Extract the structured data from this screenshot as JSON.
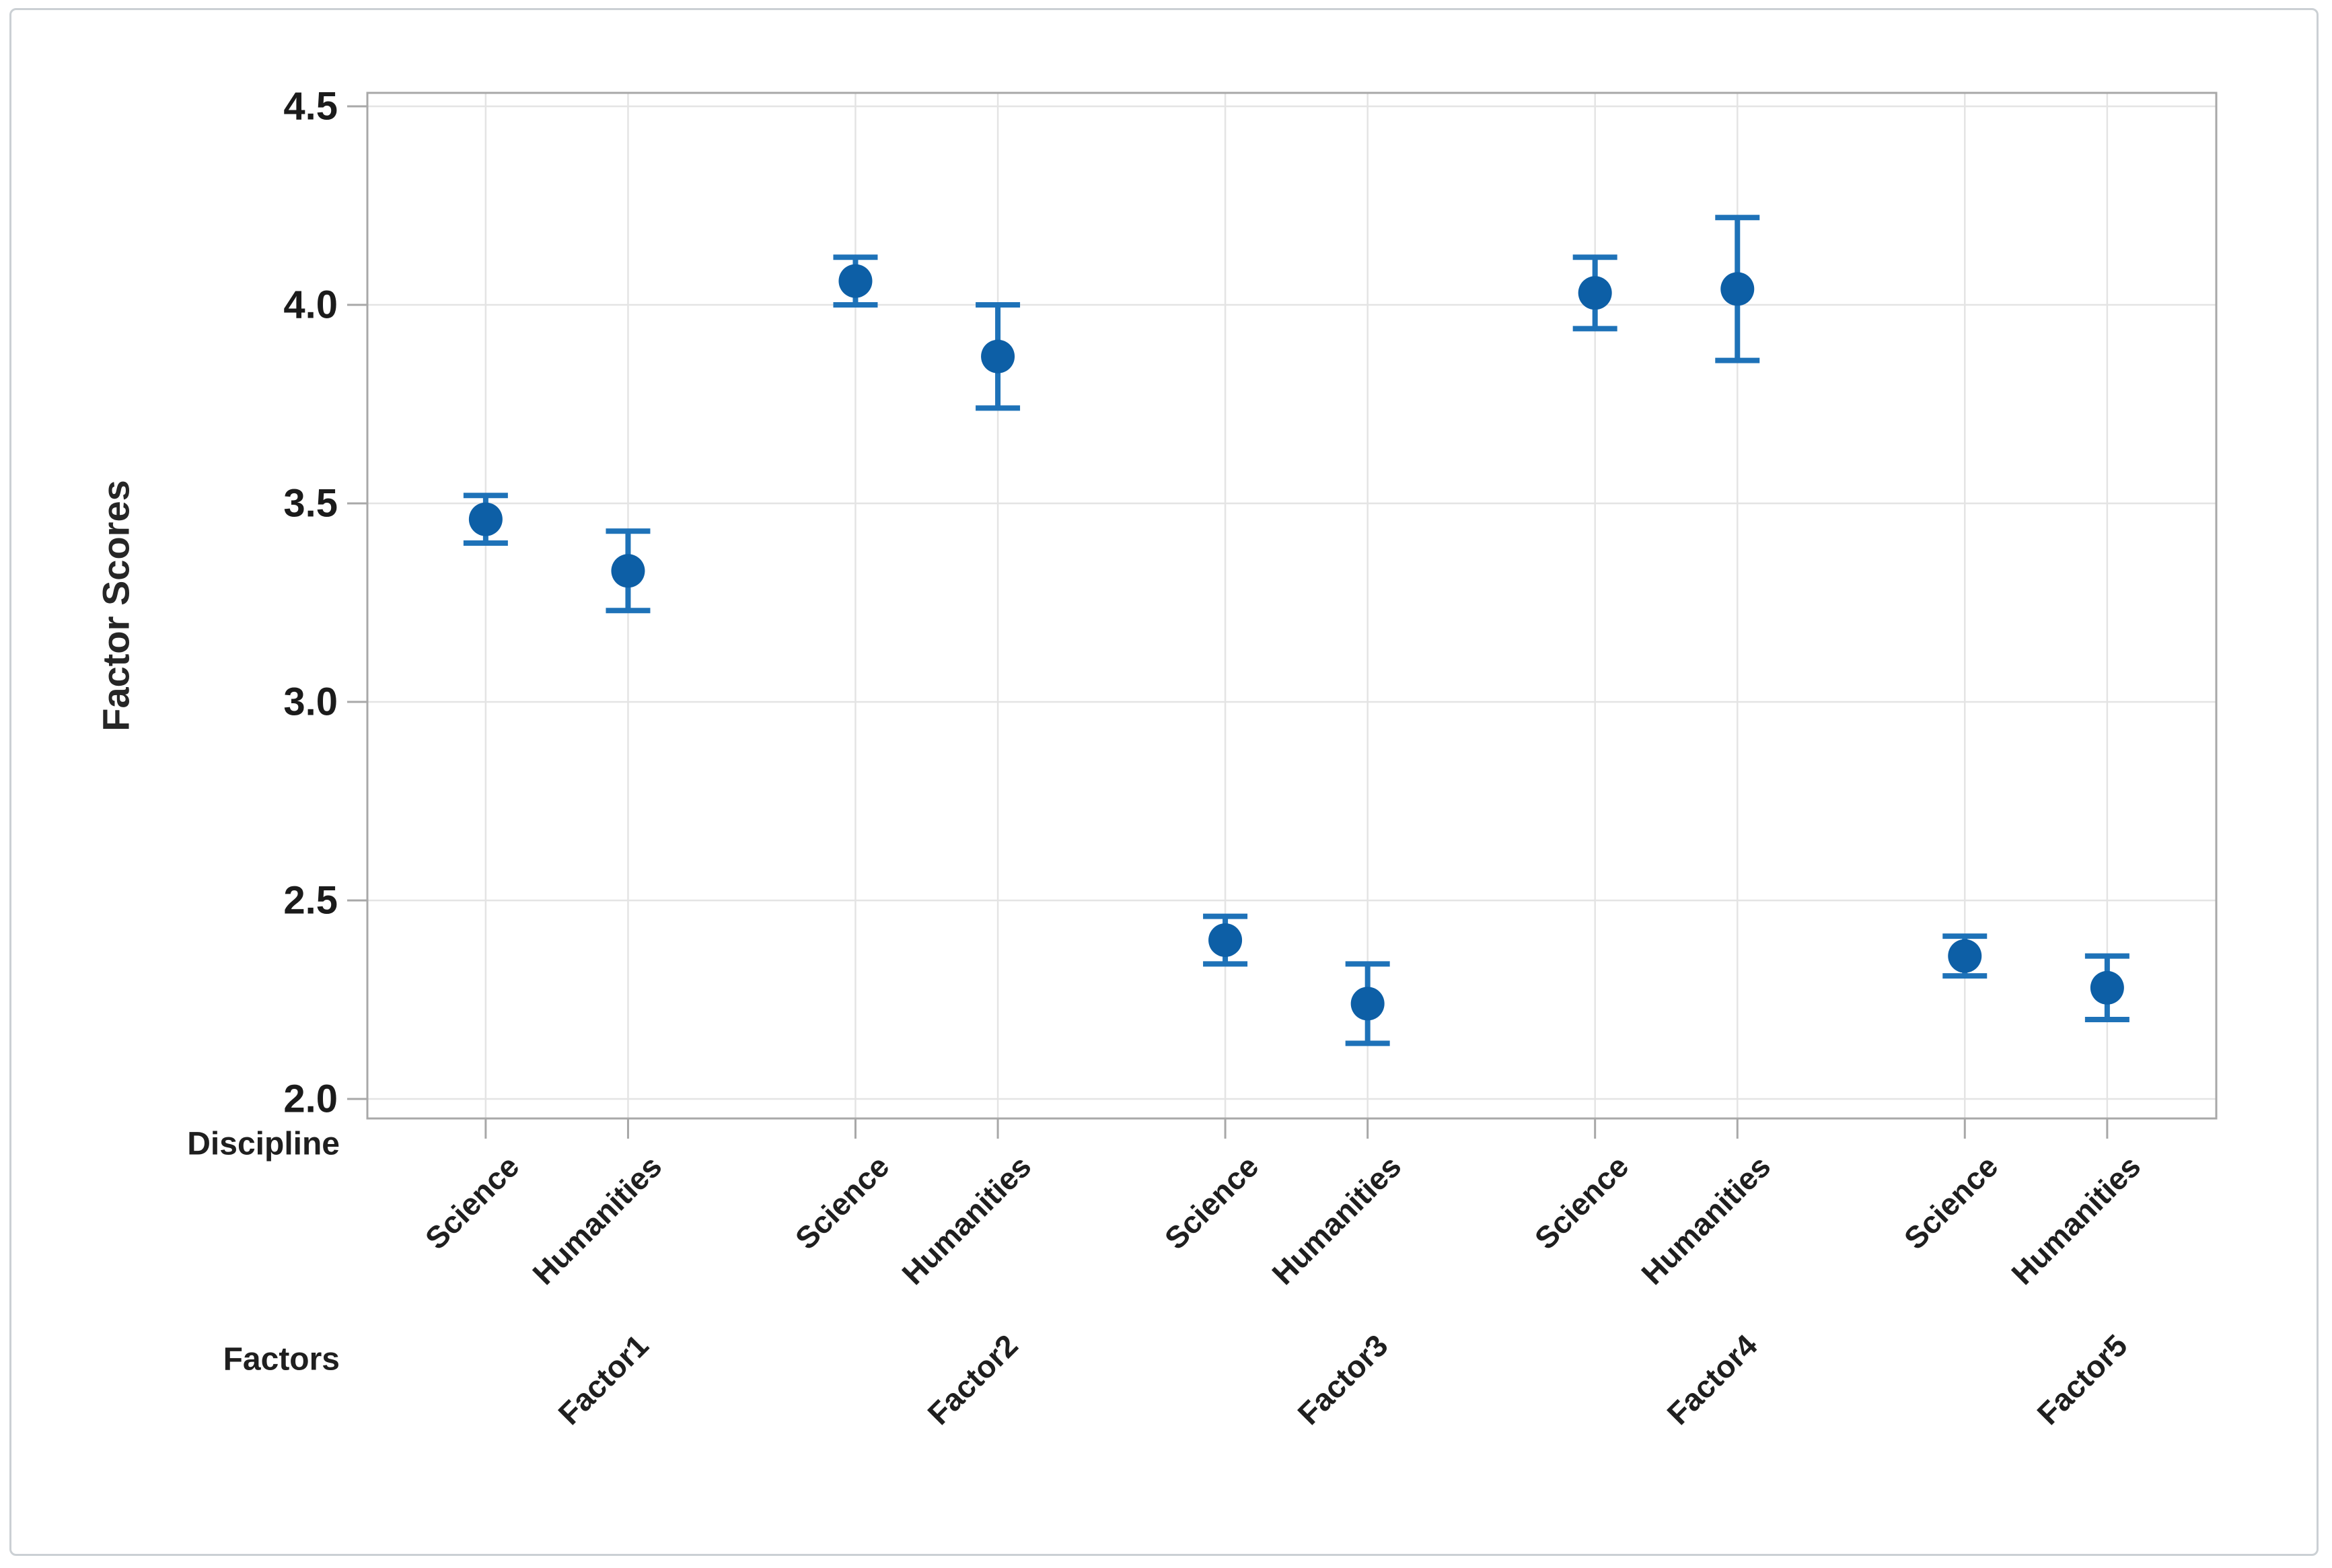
{
  "chart_data": {
    "type": "scatter",
    "subtype": "interval-plot-with-error-bars",
    "title": "",
    "ylabel": "Factor Scores",
    "x_level1_label": "Discipline",
    "x_level2_label": "Factors",
    "x_level1_values": [
      "Science",
      "Humanities"
    ],
    "x_level2_values": [
      "Factor1",
      "Factor2",
      "Factor3",
      "Factor4",
      "Factor5"
    ],
    "y_ticks": [
      4.5,
      4.0,
      3.5,
      3.0,
      2.5,
      2.0
    ],
    "y_tick_labels": [
      "4.5",
      "4.0",
      "3.5",
      "3.0",
      "2.5",
      "2.0"
    ],
    "ylim": [
      1.95,
      4.53
    ],
    "grid": true,
    "legend": "none",
    "marker_color": "#0d5fa6",
    "errorbar_color": "#1e72b8",
    "gridline_color": "#e4e4e4",
    "axis_color": "#a8a8a8",
    "points": [
      {
        "factor": "Factor1",
        "discipline": "Science",
        "mean": 3.46,
        "ci_low": 3.4,
        "ci_high": 3.52
      },
      {
        "factor": "Factor1",
        "discipline": "Humanities",
        "mean": 3.33,
        "ci_low": 3.23,
        "ci_high": 3.43
      },
      {
        "factor": "Factor2",
        "discipline": "Science",
        "mean": 4.06,
        "ci_low": 4.0,
        "ci_high": 4.12
      },
      {
        "factor": "Factor2",
        "discipline": "Humanities",
        "mean": 3.87,
        "ci_low": 3.74,
        "ci_high": 4.0
      },
      {
        "factor": "Factor3",
        "discipline": "Science",
        "mean": 2.4,
        "ci_low": 2.34,
        "ci_high": 2.46
      },
      {
        "factor": "Factor3",
        "discipline": "Humanities",
        "mean": 2.24,
        "ci_low": 2.14,
        "ci_high": 2.34
      },
      {
        "factor": "Factor4",
        "discipline": "Science",
        "mean": 4.03,
        "ci_low": 3.94,
        "ci_high": 4.12
      },
      {
        "factor": "Factor4",
        "discipline": "Humanities",
        "mean": 4.04,
        "ci_low": 3.86,
        "ci_high": 4.22
      },
      {
        "factor": "Factor5",
        "discipline": "Science",
        "mean": 2.36,
        "ci_low": 2.31,
        "ci_high": 2.41
      },
      {
        "factor": "Factor5",
        "discipline": "Humanities",
        "mean": 2.28,
        "ci_low": 2.2,
        "ci_high": 2.36
      }
    ]
  }
}
